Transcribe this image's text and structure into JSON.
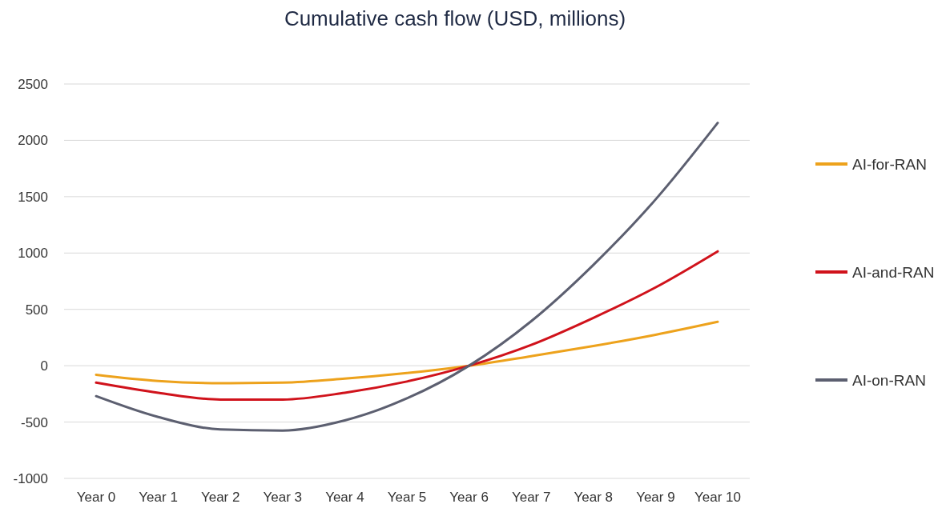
{
  "chart_data": {
    "type": "line",
    "title": "Cumulative cash flow (USD, millions)",
    "categories": [
      "Year 0",
      "Year 1",
      "Year 2",
      "Year 3",
      "Year 4",
      "Year 5",
      "Year 6",
      "Year 7",
      "Year 8",
      "Year 9",
      "Year 10"
    ],
    "series": [
      {
        "name": "AI-for-RAN",
        "color": "#eda21c",
        "values": [
          -80,
          -135,
          -155,
          -150,
          -115,
          -65,
          0,
          85,
          175,
          275,
          390
        ]
      },
      {
        "name": "AI-and-RAN",
        "color": "#d0121b",
        "values": [
          -150,
          -240,
          -300,
          -300,
          -240,
          -140,
          0,
          185,
          425,
          695,
          1015
        ]
      },
      {
        "name": "AI-on-RAN",
        "color": "#5c5f70",
        "values": [
          -270,
          -455,
          -565,
          -575,
          -485,
          -290,
          0,
          395,
          895,
          1475,
          2155
        ]
      }
    ],
    "ylim": [
      -1000,
      2500
    ],
    "yticks": [
      -1000,
      -500,
      0,
      500,
      1000,
      1500,
      2000,
      2500
    ],
    "grid": "y",
    "legend": "right",
    "marker": "none",
    "line_style": "solid"
  }
}
